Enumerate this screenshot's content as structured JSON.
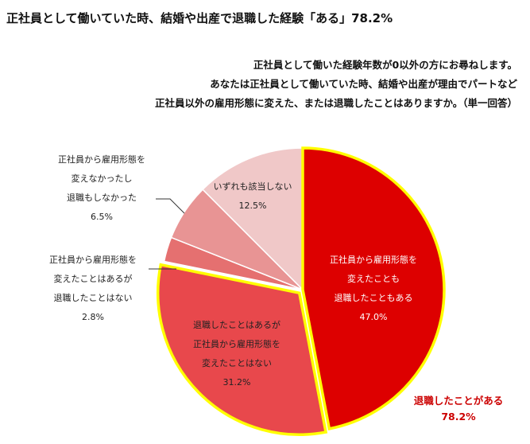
{
  "page": {
    "title": "正社員として働いていた時、結婚や出産で退職した経験「ある」78.2%",
    "question_lines": [
      "正社員として働いた経験年数が0以外の方にお尋ねします。",
      "あなたは正社員として働いていた時、結婚や出産が理由でパートなど",
      "正社員以外の雇用形態に変えた、または退職したことはありますか。（単一回答）"
    ]
  },
  "chart_data": {
    "type": "pie",
    "slices": [
      {
        "label_lines": [
          "正社員から雇用形態を",
          "変えたことも",
          "退職したこともある"
        ],
        "value": 47.0,
        "value_label": "47.0%",
        "color": "#dd0000",
        "outline": "#ffff00",
        "label_color": "#ffffff"
      },
      {
        "label_lines": [
          "退職したことはあるが",
          "正社員から雇用形態を",
          "変えたことはない"
        ],
        "value": 31.2,
        "value_label": "31.2%",
        "color": "#e8484c",
        "outline": "#ffff00",
        "label_color": "#222222"
      },
      {
        "label_lines": [
          "正社員から雇用形態を",
          "変えたことはあるが",
          "退職したことはない"
        ],
        "value": 2.8,
        "value_label": "2.8%",
        "color": "#e57070",
        "outline": "#ffffff",
        "label_color": "#222222"
      },
      {
        "label_lines": [
          "正社員から雇用形態を",
          "変えなかったし",
          "退職もしなかった"
        ],
        "value": 6.5,
        "value_label": "6.5%",
        "color": "#e89494",
        "outline": "#ffffff",
        "label_color": "#222222"
      },
      {
        "label_lines": [
          "いずれも該当しない"
        ],
        "value": 12.5,
        "value_label": "12.5%",
        "color": "#f0c8c8",
        "outline": "#ffffff",
        "label_color": "#222222"
      }
    ],
    "callout": {
      "lines": [
        "退職したことがある",
        "78.2%"
      ],
      "color": "#cc0000"
    }
  }
}
